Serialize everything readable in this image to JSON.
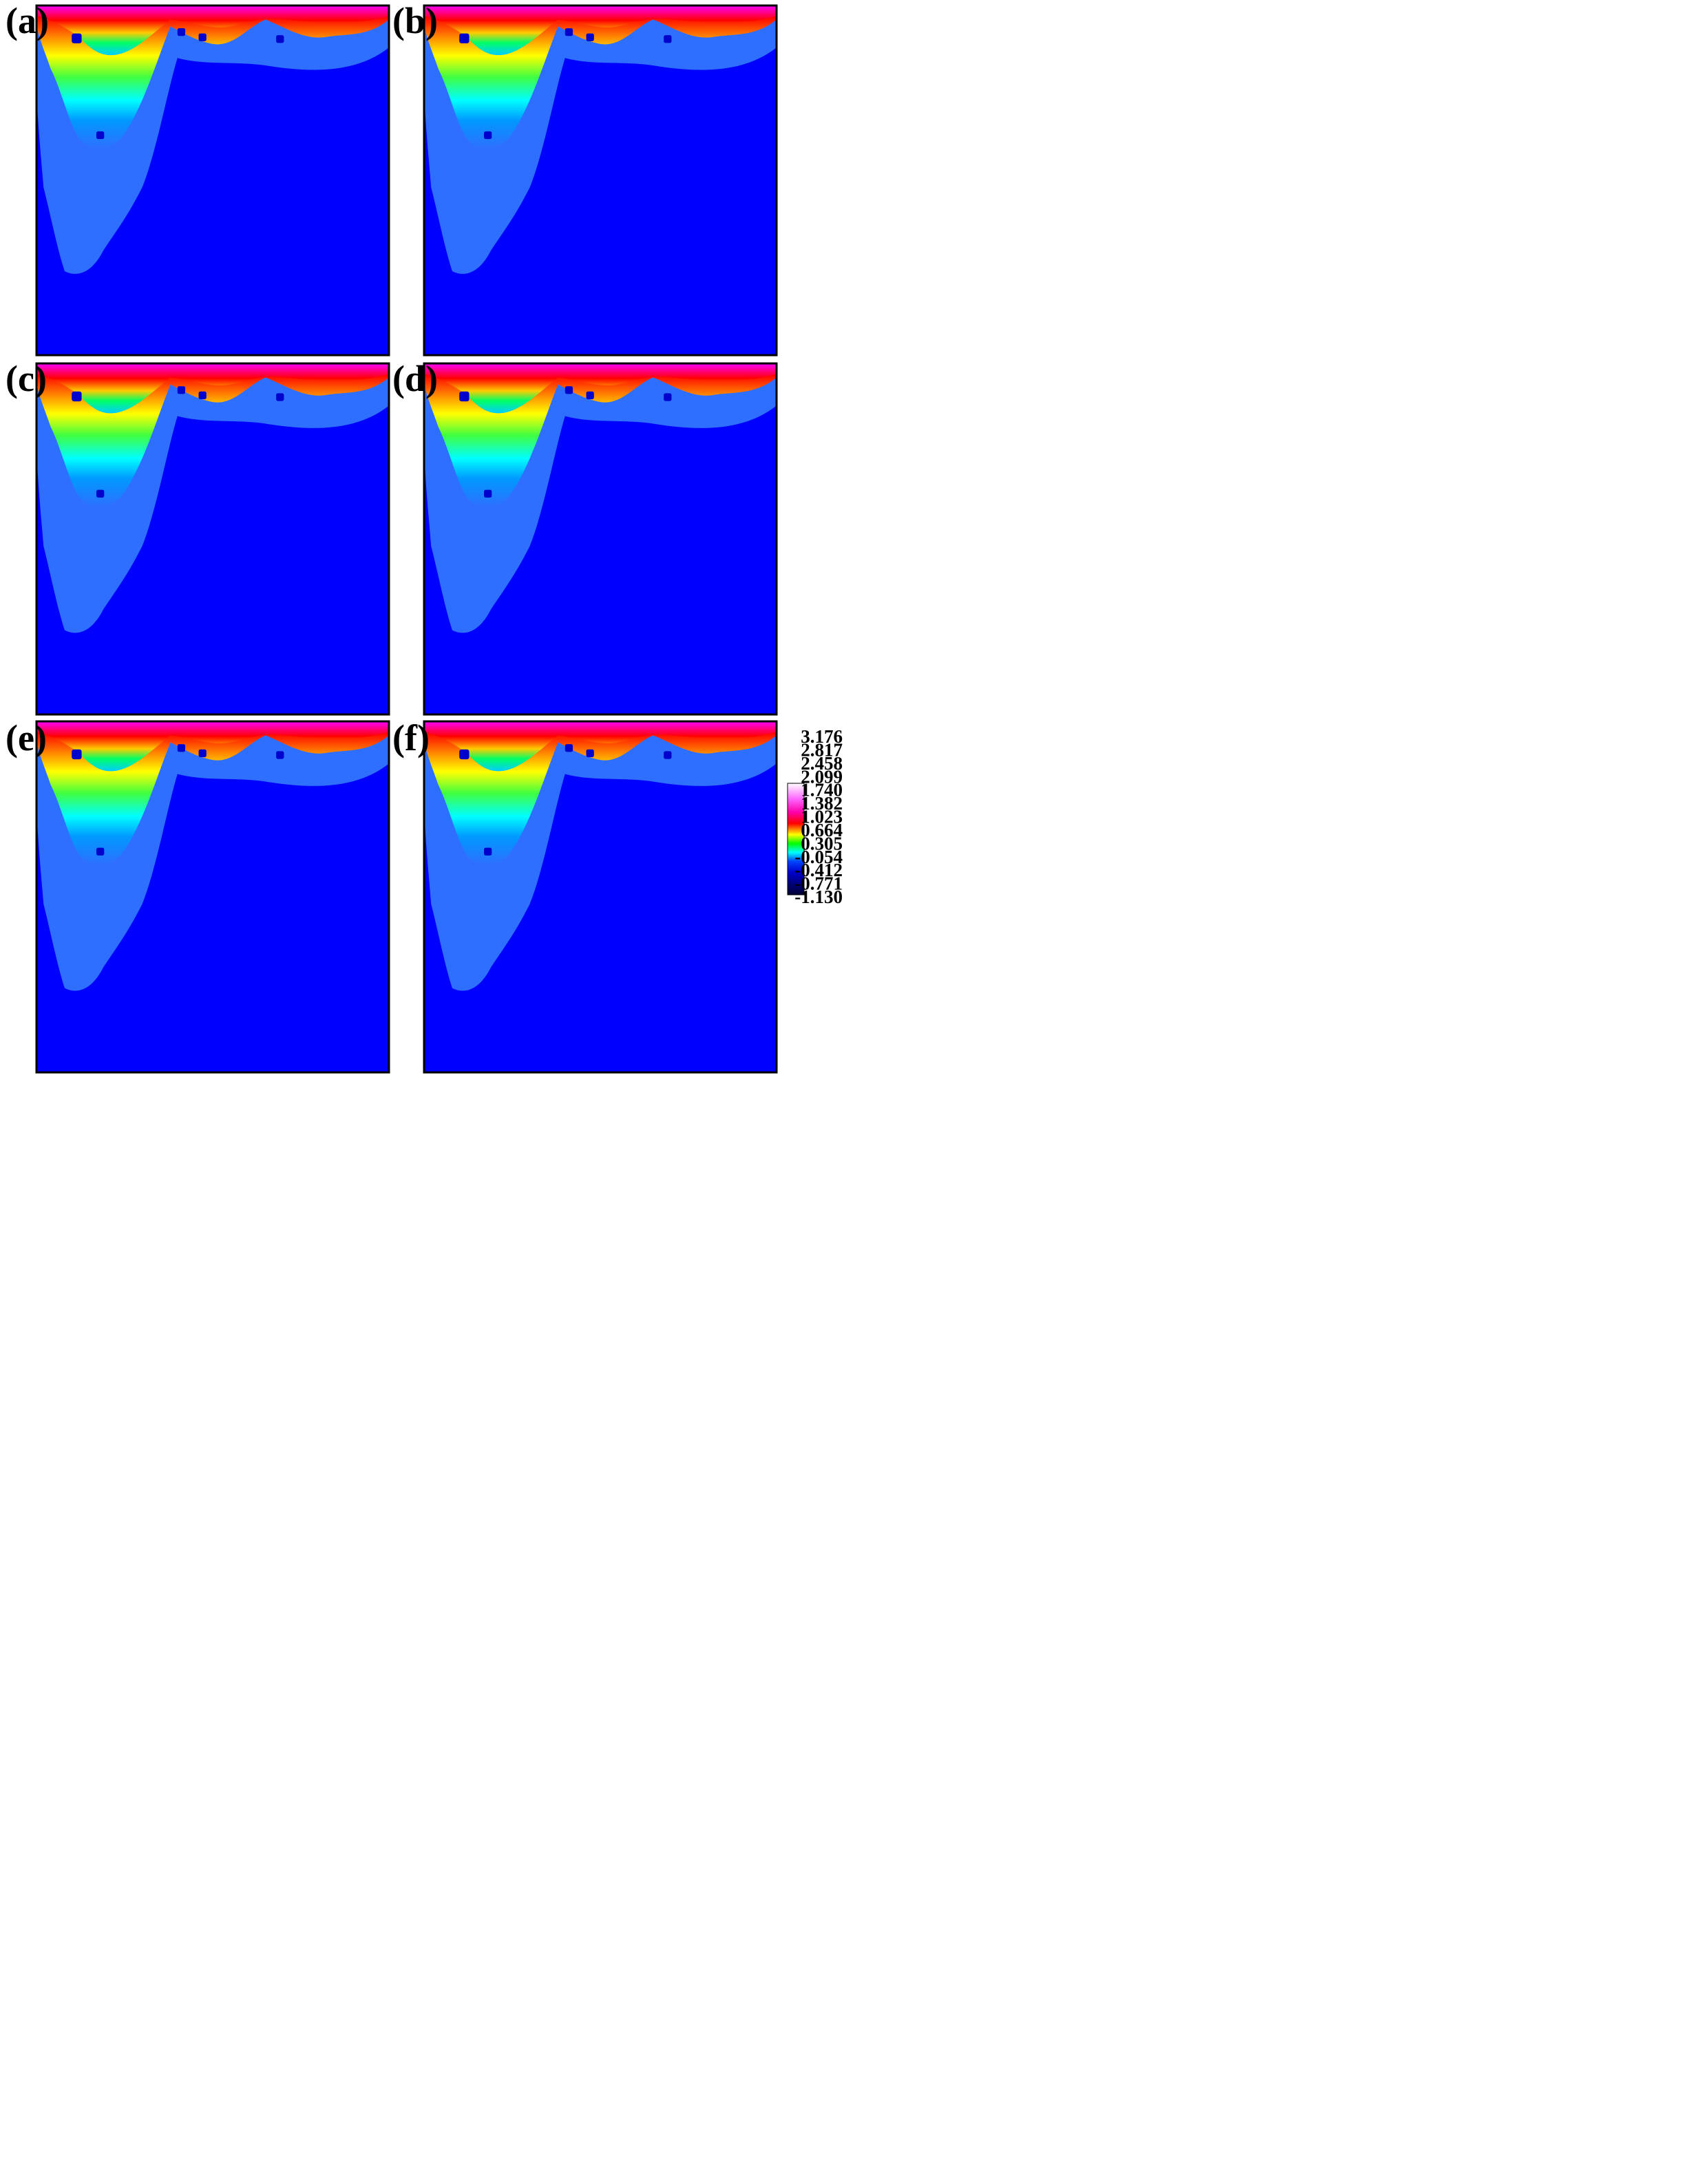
{
  "panels": [
    {
      "label": "(a)"
    },
    {
      "label": "(b)"
    },
    {
      "label": "(c)"
    },
    {
      "label": "(d)"
    },
    {
      "label": "(e)"
    },
    {
      "label": "(f)"
    }
  ],
  "colorbar": {
    "levels": [
      "3.176",
      "2.817",
      "2.458",
      "2.099",
      "1.740",
      "1.382",
      "1.023",
      "0.664",
      "0.305",
      "-0.054",
      "-0.412",
      "-0.771",
      "-1.130"
    ],
    "colors": [
      "#ffffff",
      "#ff00ff",
      "#ff0000",
      "#ffff00",
      "#00ff00",
      "#00ffff",
      "#0000ff",
      "#000040"
    ]
  },
  "colors": {
    "background_field": "#0000ff",
    "light_blue": "#2f6fff",
    "cyan": "#00ffff",
    "green": "#00e000",
    "yellow": "#ffff00",
    "red": "#ff0000",
    "magenta": "#ff00ff"
  }
}
